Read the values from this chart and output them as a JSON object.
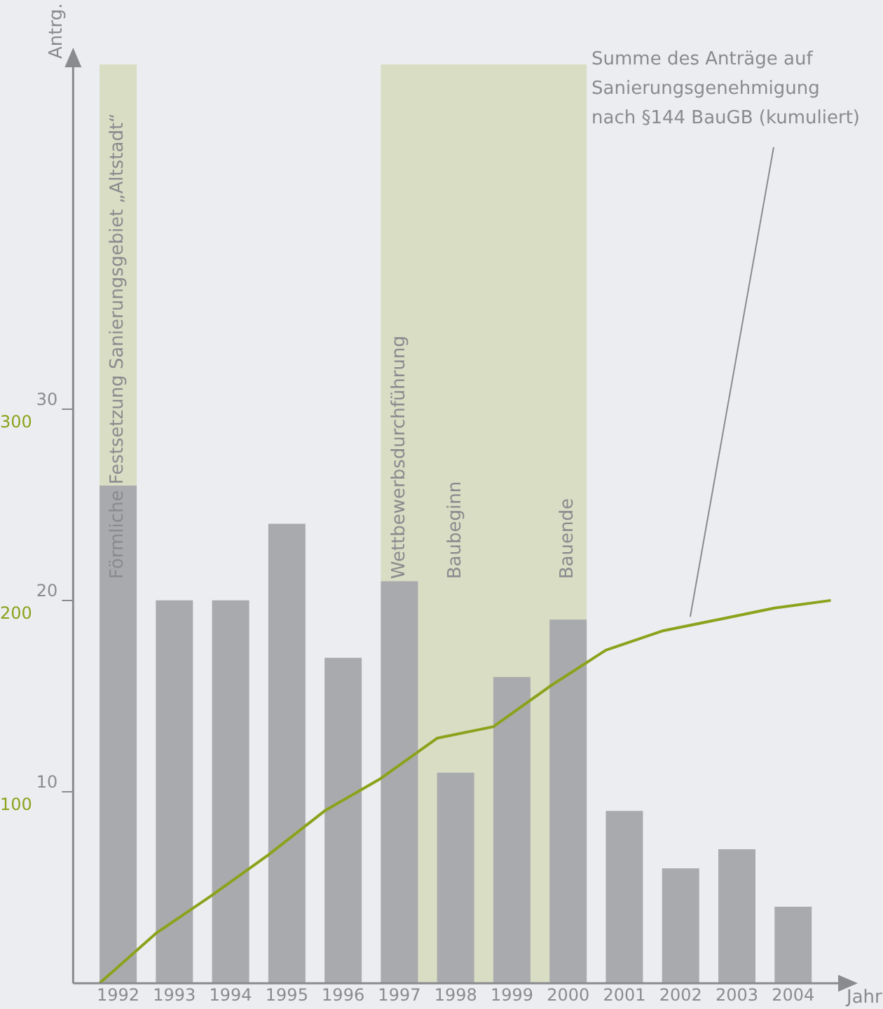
{
  "chart_data": {
    "type": "bar",
    "xlabel": "Jahr",
    "ylabel": "Antrg.",
    "x": [
      1992,
      1993,
      1994,
      1995,
      1996,
      1997,
      1998,
      1999,
      2000,
      2001,
      2002,
      2003,
      2004
    ],
    "xlim": [
      1991.2,
      2004.85
    ],
    "xticks": [
      1992,
      1993,
      1994,
      1995,
      1996,
      1997,
      1998,
      1999,
      2000,
      2001,
      2002,
      2003,
      2004
    ],
    "ylim": [
      0,
      48
    ],
    "yticks": [
      10,
      20,
      30
    ],
    "y2lim": [
      0,
      480
    ],
    "y2ticks": [
      100,
      200,
      300
    ],
    "grid": false,
    "legend": false,
    "marker": "none",
    "series": [
      {
        "color": "#a9aaad",
        "values": [
          26,
          20,
          20,
          24,
          17,
          21,
          11,
          16,
          19,
          9,
          6,
          7,
          4
        ]
      },
      {
        "type": "line",
        "axis": "y2",
        "color": "#8ba21c",
        "x": [
          1991.67,
          1992.67,
          1993.67,
          1994.67,
          1995.67,
          1996.67,
          1997.67,
          1998.67,
          1999.67,
          2000.67,
          2001.67,
          2002.67,
          2003.67,
          2004.67
        ],
        "values": [
          0,
          26,
          46,
          67,
          90,
          107,
          128,
          134,
          155,
          174,
          184,
          190,
          196,
          200
        ]
      }
    ],
    "bands": [
      {
        "axis": "x",
        "from": 1991.67,
        "to": 1992.33,
        "color": "#d9ddc4"
      },
      {
        "axis": "x",
        "from": 1996.67,
        "to": 2000.33,
        "color": "#d9ddc4"
      }
    ],
    "annotations": [
      "Förmliche Festsetzung Sanierungsgebiet „Altstadt“",
      "Wettbewerbsdurchführung",
      "Baubeginn",
      "Bauende",
      "Summe des Anträge auf\nSanierungsgenehmigung\nnach §144 BauGB (kumuliert)"
    ]
  }
}
